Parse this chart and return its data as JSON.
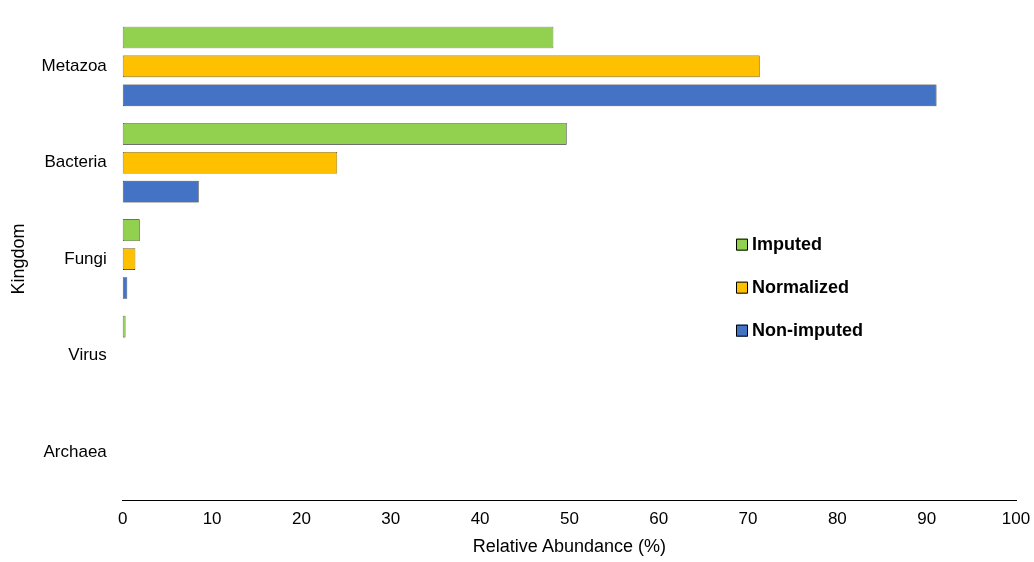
{
  "chart_data": {
    "type": "bar",
    "orientation": "horizontal",
    "xlabel": "Relative Abundance (%)",
    "ylabel": "Kingdom",
    "categories": [
      "Metazoa",
      "Bacteria",
      "Fungi",
      "Virus",
      "Archaea"
    ],
    "series": [
      {
        "name": "Imputed",
        "color": "#92d050",
        "values": [
          48.2,
          49.7,
          1.9,
          0.3,
          0
        ]
      },
      {
        "name": "Normalized",
        "color": "#ffc000",
        "values": [
          71.3,
          24,
          1.4,
          0,
          0
        ]
      },
      {
        "name": "Non-imputed",
        "color": "#4472c4",
        "values": [
          91.1,
          8.5,
          0.5,
          0,
          0
        ]
      }
    ],
    "xlim": [
      0,
      100
    ],
    "xticks": [
      0,
      10,
      20,
      30,
      40,
      50,
      60,
      70,
      80,
      90,
      100
    ],
    "grid": false,
    "legend": "right"
  }
}
